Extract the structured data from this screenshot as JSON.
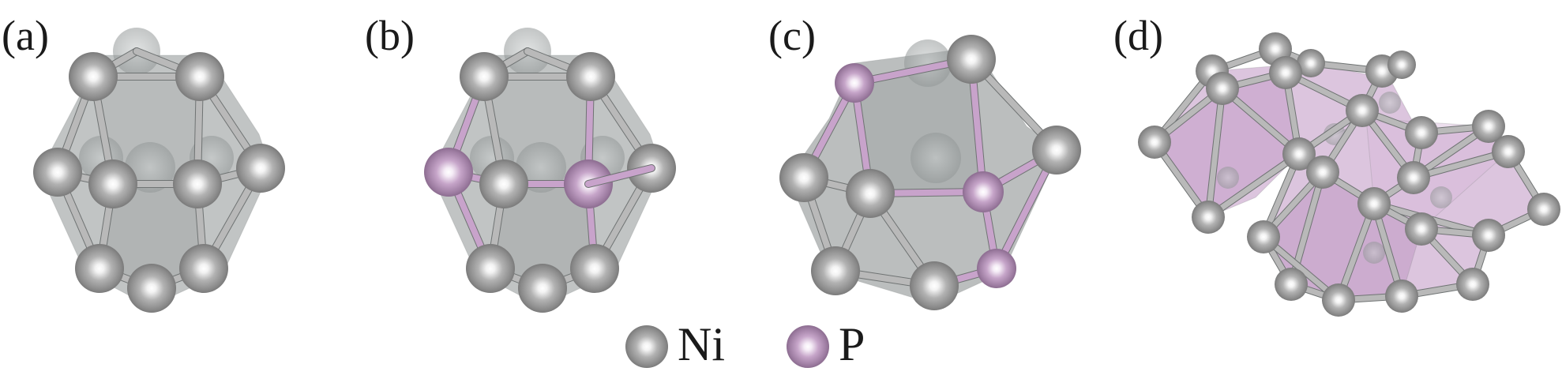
{
  "panels": {
    "a": {
      "label": "(a)"
    },
    "b": {
      "label": "(b)"
    },
    "c": {
      "label": "(c)"
    },
    "d": {
      "label": "(d)"
    }
  },
  "legend": {
    "ni": {
      "label": "Ni",
      "color": "#a9a9a9"
    },
    "p": {
      "label": "P",
      "color": "#b493b8"
    }
  },
  "colors": {
    "cage_face": "#8e9393",
    "polyhedron_face": "#caa6cd",
    "bond": "#b9b9b9",
    "ni_atom": "#a9a9a9",
    "p_atom": "#b493b8"
  }
}
